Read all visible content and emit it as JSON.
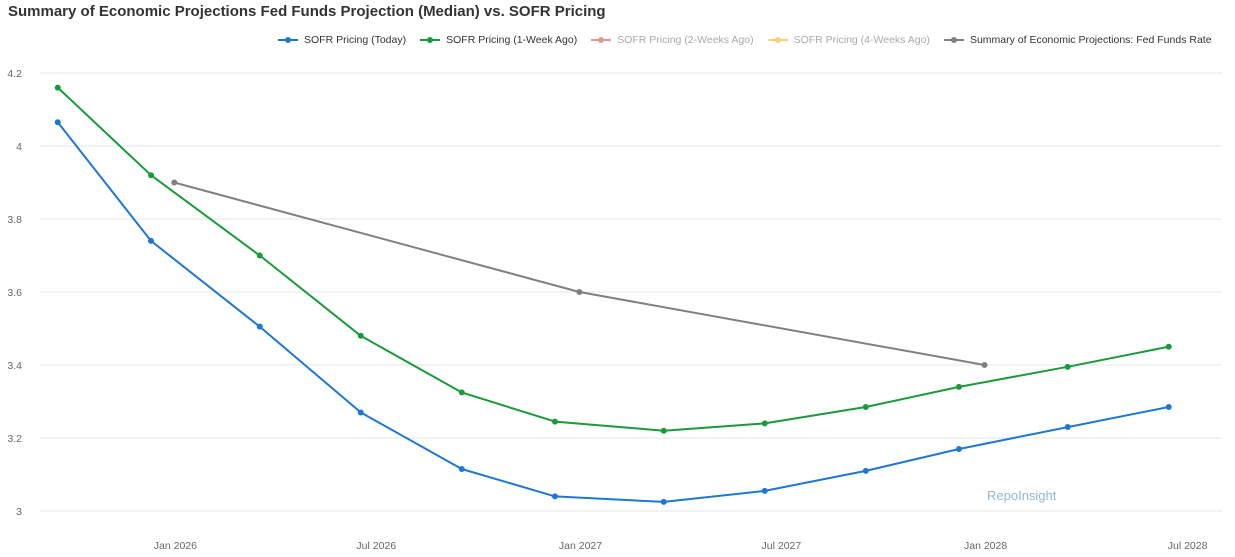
{
  "chart_data": {
    "type": "line",
    "title": "Summary of Economic Projections Fed Funds Projection (Median) vs. SOFR Pricing",
    "xlabel": "",
    "ylabel": "",
    "ylim": [
      3.0,
      4.2
    ],
    "yticks": [
      "3",
      "3.2",
      "3.4",
      "3.6",
      "3.8",
      "4",
      "4.2"
    ],
    "xlim": [
      "2025-09-01",
      "2028-08-01"
    ],
    "xticks": [
      {
        "date": "2026-01-01",
        "label": "Jan 2026"
      },
      {
        "date": "2026-07-01",
        "label": "Jul 2026"
      },
      {
        "date": "2027-01-01",
        "label": "Jan 2027"
      },
      {
        "date": "2027-07-01",
        "label": "Jul 2027"
      },
      {
        "date": "2028-01-01",
        "label": "Jan 2028"
      },
      {
        "date": "2028-07-01",
        "label": "Jul 2028"
      }
    ],
    "grid": true,
    "legend_position": "top",
    "watermark": "RepoInsight",
    "series": [
      {
        "name": "SOFR Pricing (Today)",
        "color": "#1f77d4",
        "visible": true,
        "points": [
          {
            "x": "2025-09-17",
            "y": 4.065
          },
          {
            "x": "2025-12-10",
            "y": 3.74
          },
          {
            "x": "2026-03-18",
            "y": 3.505
          },
          {
            "x": "2026-06-17",
            "y": 3.27
          },
          {
            "x": "2026-09-16",
            "y": 3.115
          },
          {
            "x": "2026-12-09",
            "y": 3.04
          },
          {
            "x": "2027-03-17",
            "y": 3.025
          },
          {
            "x": "2027-06-16",
            "y": 3.055
          },
          {
            "x": "2027-09-15",
            "y": 3.11
          },
          {
            "x": "2027-12-08",
            "y": 3.17
          },
          {
            "x": "2028-03-15",
            "y": 3.23
          },
          {
            "x": "2028-06-14",
            "y": 3.285
          }
        ]
      },
      {
        "name": "SOFR Pricing (1-Week Ago)",
        "color": "#1a9a3a",
        "visible": true,
        "points": [
          {
            "x": "2025-09-17",
            "y": 4.16
          },
          {
            "x": "2025-12-10",
            "y": 3.92
          },
          {
            "x": "2026-03-18",
            "y": 3.7
          },
          {
            "x": "2026-06-17",
            "y": 3.48
          },
          {
            "x": "2026-09-16",
            "y": 3.325
          },
          {
            "x": "2026-12-09",
            "y": 3.245
          },
          {
            "x": "2027-03-17",
            "y": 3.22
          },
          {
            "x": "2027-06-16",
            "y": 3.24
          },
          {
            "x": "2027-09-15",
            "y": 3.285
          },
          {
            "x": "2027-12-08",
            "y": 3.34
          },
          {
            "x": "2028-03-15",
            "y": 3.395
          },
          {
            "x": "2028-06-14",
            "y": 3.45
          }
        ]
      },
      {
        "name": "SOFR Pricing (2-Weeks Ago)",
        "color": "#e8948a",
        "visible": false,
        "points": []
      },
      {
        "name": "SOFR Pricing (4-Weeks Ago)",
        "color": "#f7cf7a",
        "visible": false,
        "points": []
      },
      {
        "name": "Summary of Economic Projections: Fed Funds Rate",
        "color": "#808080",
        "visible": true,
        "points": [
          {
            "x": "2025-12-31",
            "y": 3.9
          },
          {
            "x": "2026-12-31",
            "y": 3.6
          },
          {
            "x": "2027-12-31",
            "y": 3.4
          }
        ]
      }
    ]
  }
}
